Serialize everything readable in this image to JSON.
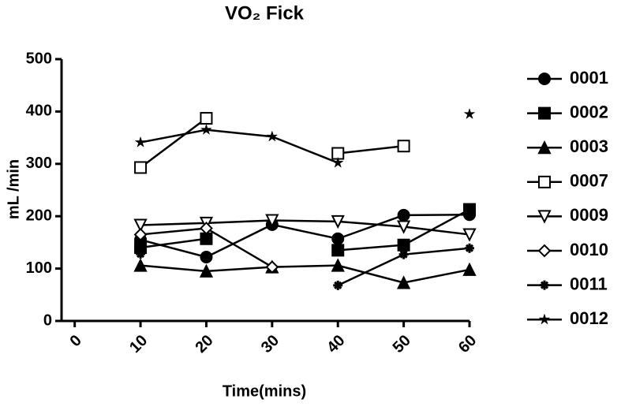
{
  "chart_data": {
    "type": "line",
    "title": "VO₂ Fick",
    "x_label": "Time(mins)",
    "y_label": "mL /min",
    "x": [
      10,
      20,
      30,
      40,
      50,
      60
    ],
    "xlim": [
      -2,
      60
    ],
    "xticks": [
      0,
      10,
      20,
      30,
      40,
      50,
      60
    ],
    "ylim": [
      0,
      500
    ],
    "yticks": [
      0,
      100,
      200,
      300,
      400,
      500
    ],
    "series": [
      {
        "name": "0001",
        "color": "#000000",
        "marker": "circle",
        "values": [
          155,
          122,
          184,
          157,
          202,
          203
        ]
      },
      {
        "name": "0002",
        "color": "#000000",
        "marker": "square",
        "values": [
          140,
          157,
          null,
          135,
          145,
          213
        ]
      },
      {
        "name": "0003",
        "color": "#000000",
        "marker": "triangle",
        "values": [
          106,
          95,
          103,
          106,
          73,
          98
        ]
      },
      {
        "name": "0007",
        "color": "#000000",
        "marker": "open-square",
        "values": [
          293,
          387,
          null,
          320,
          334,
          null
        ]
      },
      {
        "name": "0009",
        "color": "#000000",
        "marker": "open-triangle-down",
        "values": [
          183,
          187,
          192,
          190,
          180,
          165
        ]
      },
      {
        "name": "0010",
        "color": "#000000",
        "marker": "open-diamond",
        "values": [
          165,
          177,
          103,
          null,
          null,
          null
        ]
      },
      {
        "name": "0011",
        "color": "#000000",
        "marker": "asterisk",
        "values": [
          128,
          null,
          null,
          68,
          127,
          139
        ]
      },
      {
        "name": "0012",
        "color": "#000000",
        "marker": "star",
        "values": [
          341,
          365,
          352,
          302,
          null,
          395
        ]
      }
    ]
  }
}
